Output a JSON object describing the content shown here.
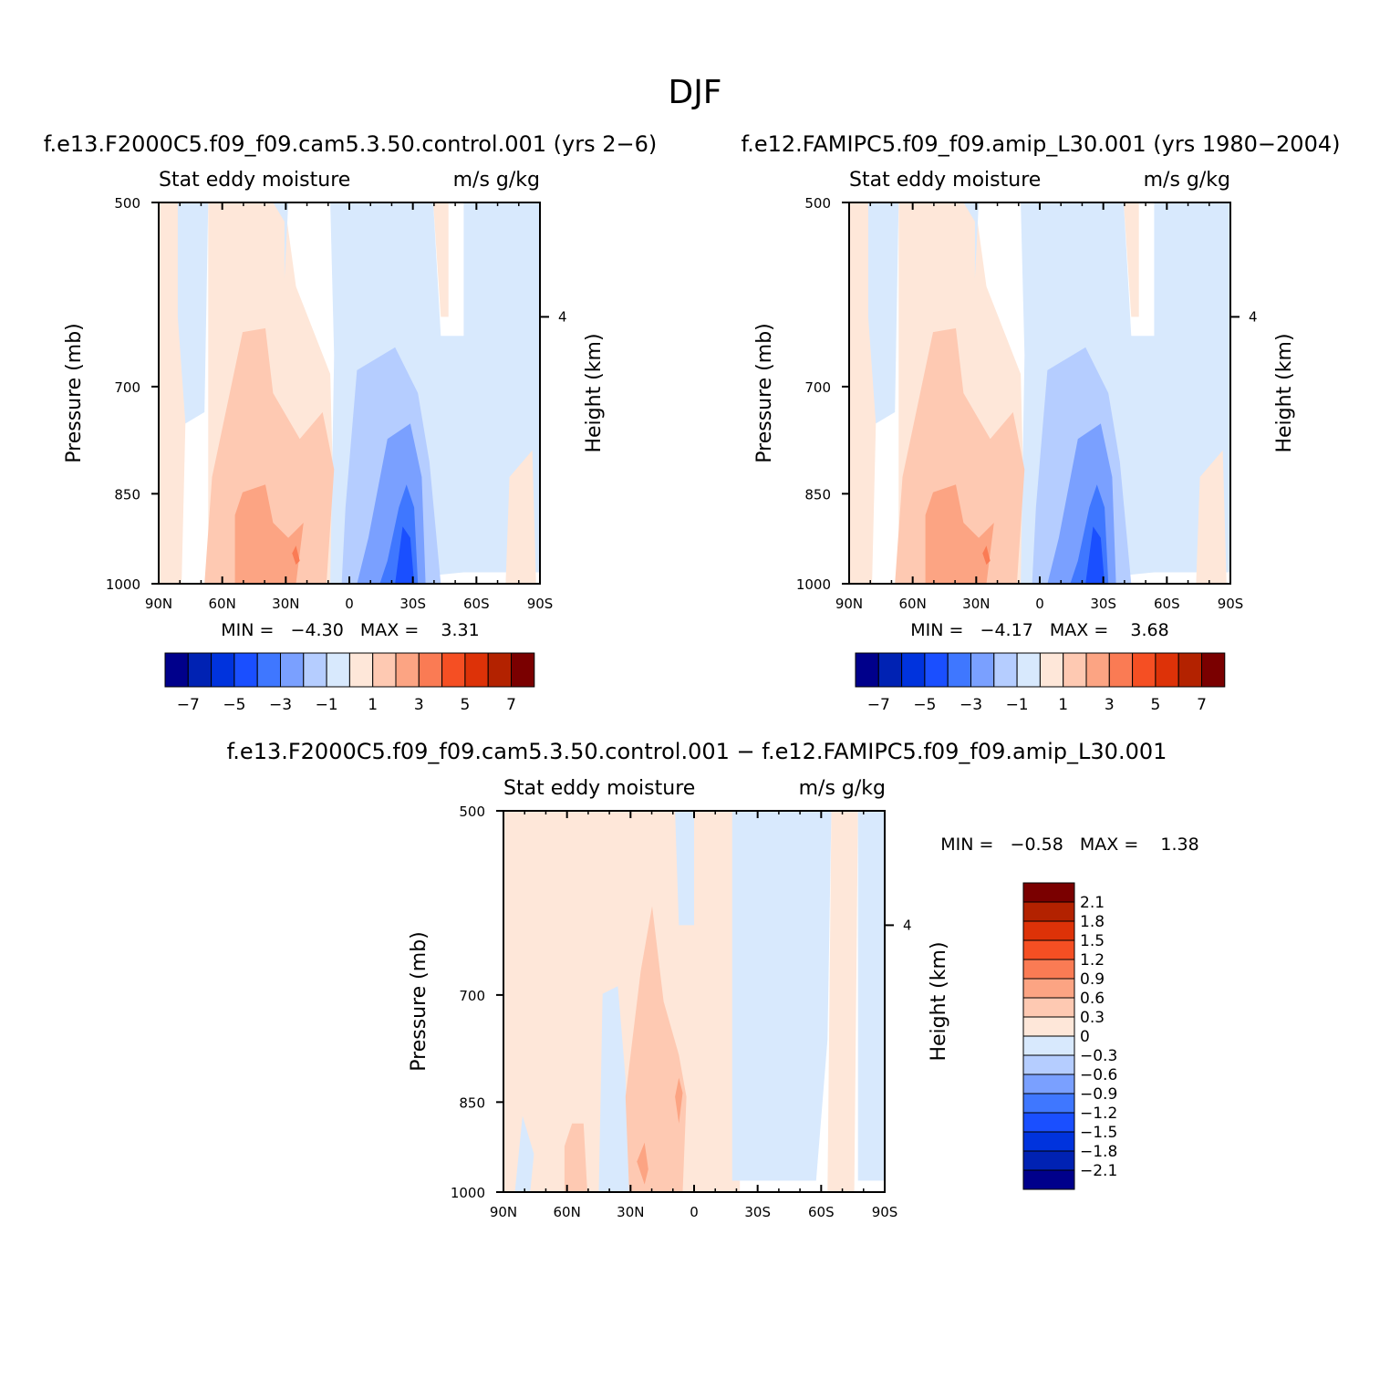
{
  "figure": {
    "season": "DJF",
    "variable_label": "Stat eddy moisture",
    "units_label": "m/s g/kg"
  },
  "panels": [
    {
      "case_title": "f.e13.F2000C5.f09_f09.cam5.3.50.control.001 (yrs 2−6)",
      "stats_text": "MIN =   −4.30   MAX =    3.31"
    },
    {
      "case_title": "f.e12.FAMIPC5.f09_f09.amip_L30.001 (yrs 1980−2004)",
      "stats_text": "MIN =   −4.17   MAX =    3.68"
    },
    {
      "case_title": "f.e13.F2000C5.f09_f09.cam5.3.50.control.001 − f.e12.FAMIPC5.f09_f09.amip_L30.001",
      "stats_text": "MIN =   −0.58   MAX =    1.38"
    }
  ],
  "colorbars": {
    "main_labels": [
      "−7",
      "−5",
      "−3",
      "−1",
      "1",
      "3",
      "5",
      "7"
    ],
    "diff_labels": [
      "2.1",
      "1.8",
      "1.5",
      "1.2",
      "0.9",
      "0.6",
      "0.3",
      "0",
      "−0.3",
      "−0.6",
      "−0.9",
      "−1.2",
      "−1.5",
      "−1.8",
      "−2.1"
    ],
    "colors": [
      "#00008b",
      "#0022b3",
      "#0033dd",
      "#1a4fff",
      "#3f77ff",
      "#7aa0ff",
      "#b5cdff",
      "#d8e9fd",
      "#fee7d9",
      "#fec9b2",
      "#fca483",
      "#fa7b54",
      "#f54f23",
      "#dd3208",
      "#b32200",
      "#7a0000"
    ]
  },
  "chart_data": [
    {
      "type": "contour",
      "title": "Stat eddy moisture",
      "subtitle": "f.e13.F2000C5.f09_f09.cam5.3.50.control.001 (yrs 2−6)",
      "units": "m/s g/kg",
      "xlabel": "",
      "ylabel": "Pressure (mb)",
      "ylabel_right": "Height (km)",
      "x_ticks": [
        "90N",
        "60N",
        "30N",
        "0",
        "30S",
        "60S",
        "90S"
      ],
      "y_ticks": [
        "500",
        "700",
        "850",
        "1000"
      ],
      "y_right_ticks": [
        "4"
      ],
      "ylim": [
        1000,
        500
      ],
      "levels": [
        -7,
        -6,
        -5,
        -4,
        -3,
        -2,
        -1,
        0,
        1,
        2,
        3,
        4,
        5,
        6,
        7
      ],
      "min": -4.3,
      "max": 3.31,
      "regions": [
        {
          "lat": "65N–45N",
          "level": "1000–850 mb",
          "value": 2.5
        },
        {
          "lat": "80N–10N",
          "level": "1000–650 mb",
          "value": 0.8
        },
        {
          "lat": "25S–30S",
          "level": "1000–870 mb",
          "value": -3.5
        },
        {
          "lat": "5S–40S",
          "level": "1000–680 mb",
          "value": -1.5
        },
        {
          "lat": "0–90S",
          "level": "500–1000 mb",
          "value": -0.4
        }
      ]
    },
    {
      "type": "contour",
      "title": "Stat eddy moisture",
      "subtitle": "f.e12.FAMIPC5.f09_f09.amip_L30.001 (yrs 1980−2004)",
      "units": "m/s g/kg",
      "xlabel": "",
      "ylabel": "Pressure (mb)",
      "ylabel_right": "Height (km)",
      "x_ticks": [
        "90N",
        "60N",
        "30N",
        "0",
        "30S",
        "60S",
        "90S"
      ],
      "y_ticks": [
        "500",
        "700",
        "850",
        "1000"
      ],
      "y_right_ticks": [
        "4"
      ],
      "ylim": [
        1000,
        500
      ],
      "levels": [
        -7,
        -6,
        -5,
        -4,
        -3,
        -2,
        -1,
        0,
        1,
        2,
        3,
        4,
        5,
        6,
        7
      ],
      "min": -4.17,
      "max": 3.68,
      "regions": [
        {
          "lat": "65N–40N",
          "level": "1000–850 mb",
          "value": 2.5
        },
        {
          "lat": "80N–10N",
          "level": "1000–650 mb",
          "value": 0.8
        },
        {
          "lat": "25S–30S",
          "level": "1000–870 mb",
          "value": -3.5
        },
        {
          "lat": "5S–40S",
          "level": "1000–680 mb",
          "value": -1.5
        },
        {
          "lat": "0–90S",
          "level": "500–1000 mb",
          "value": -0.4
        }
      ]
    },
    {
      "type": "contour",
      "title": "Stat eddy moisture",
      "subtitle": "f.e13.F2000C5.f09_f09.cam5.3.50.control.001 − f.e12.FAMIPC5.f09_f09.amip_L30.001",
      "units": "m/s g/kg",
      "xlabel": "",
      "ylabel": "Pressure (mb)",
      "ylabel_right": "Height (km)",
      "x_ticks": [
        "90N",
        "60N",
        "30N",
        "0",
        "30S",
        "60S",
        "90S"
      ],
      "y_ticks": [
        "500",
        "700",
        "850",
        "1000"
      ],
      "y_right_ticks": [
        "4"
      ],
      "ylim": [
        1000,
        500
      ],
      "levels": [
        -2.1,
        -1.8,
        -1.5,
        -1.2,
        -0.9,
        -0.6,
        -0.3,
        0,
        0.3,
        0.6,
        0.9,
        1.2,
        1.5,
        1.8,
        2.1
      ],
      "min": -0.58,
      "max": 1.38,
      "regions": [
        {
          "lat": "90N–45N",
          "level": "500–1000 mb",
          "value": 0.15
        },
        {
          "lat": "35N–5N",
          "level": "1000–620 mb",
          "value": 0.4
        },
        {
          "lat": "5S–35S",
          "level": "500–1000 mb",
          "value": -0.15
        },
        {
          "lat": "35S–60S",
          "level": "500–1000 mb",
          "value": 0.15
        },
        {
          "lat": "60S–90S",
          "level": "500–1000 mb",
          "value": -0.15
        }
      ]
    }
  ]
}
